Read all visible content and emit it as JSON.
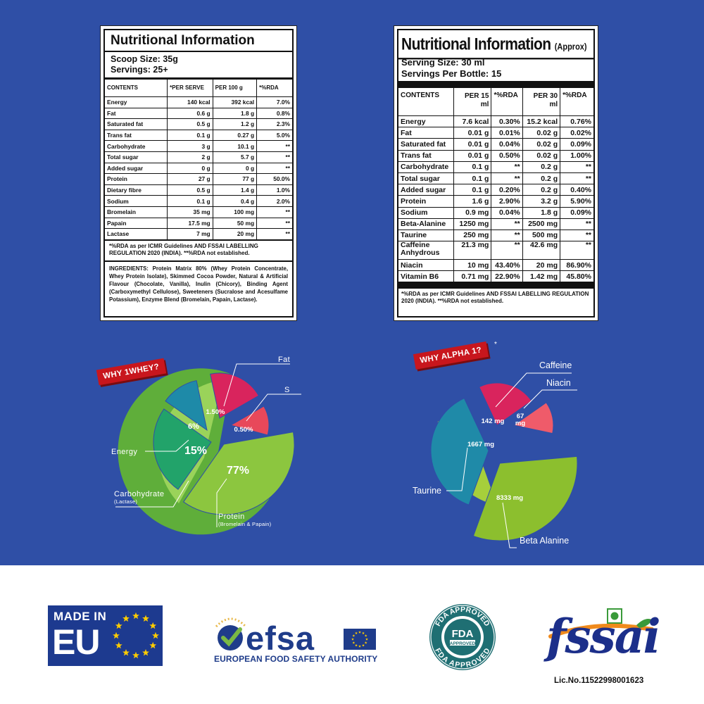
{
  "left_panel": {
    "title": "Nutritional Information",
    "scoop_size": "Scoop Size: 35g",
    "servings": "Servings: 25+",
    "headers": [
      "CONTENTS",
      "*PER SERVE",
      "PER 100 g",
      "*%RDA"
    ],
    "rows": [
      [
        "Energy",
        "140 kcal",
        "392 kcal",
        "7.0%"
      ],
      [
        "Fat",
        "0.6 g",
        "1.8 g",
        "0.8%"
      ],
      [
        "Saturated fat",
        "0.5 g",
        "1.2 g",
        "2.3%"
      ],
      [
        "Trans fat",
        "0.1 g",
        "0.27 g",
        "5.0%"
      ],
      [
        "Carbohydrate",
        "3 g",
        "10.1 g",
        "**"
      ],
      [
        "Total sugar",
        "2 g",
        "5.7 g",
        "**"
      ],
      [
        "Added sugar",
        "0 g",
        "0 g",
        "**"
      ],
      [
        "Protein",
        "27 g",
        "77 g",
        "50.0%"
      ],
      [
        "Dietary fibre",
        "0.5 g",
        "1.4 g",
        "1.0%"
      ],
      [
        "Sodium",
        "0.1 g",
        "0.4 g",
        "2.0%"
      ],
      [
        "Bromelain",
        "35 mg",
        "100 mg",
        "**"
      ],
      [
        "Papain",
        "17.5 mg",
        "50 mg",
        "**"
      ],
      [
        "Lactase",
        "7 mg",
        "20 mg",
        "**"
      ]
    ],
    "footnote": "*%RDA as per ICMR Guidelines AND FSSAI LABELLING REGULATION 2020 (INDIA). **%RDA not established.",
    "ingredients": "INGREDIENTS: Protein Matrix 80% (Whey Protein Concentrate, Whey Protein Isolate), Skimmed Cocoa Powder, Natural & Artificial Flavour (Chocolate, Vanilla), Inulin (Chicory), Binding Agent (Carboxymethyl Cellulose), Sweeteners (Sucralose and Acesulfame Potassium), Enzyme Blend (Bromelain, Papain, Lactase)."
  },
  "right_panel": {
    "title": "Nutritional Information",
    "title_suffix": "(Approx)",
    "serving_size": "Serving Size: 30 ml",
    "servings": "Servings Per Bottle: 15",
    "headers": [
      "CONTENTS",
      "PER 15 ml",
      "*%RDA",
      "PER 30 ml",
      "*%RDA"
    ],
    "rows": [
      [
        "Energy",
        "7.6 kcal",
        "0.30%",
        "15.2 kcal",
        "0.76%"
      ],
      [
        "Fat",
        "0.01 g",
        "0.01%",
        "0.02 g",
        "0.02%"
      ],
      [
        "Saturated fat",
        "0.01 g",
        "0.04%",
        "0.02 g",
        "0.09%"
      ],
      [
        "Trans fat",
        "0.01 g",
        "0.50%",
        "0.02 g",
        "1.00%"
      ],
      [
        "Carbohydrate",
        "0.1 g",
        "**",
        "0.2 g",
        "**"
      ],
      [
        "Total sugar",
        "0.1 g",
        "**",
        "0.2 g",
        "**"
      ],
      [
        "Added sugar",
        "0.1 g",
        "0.20%",
        "0.2 g",
        "0.40%"
      ],
      [
        "Protein",
        "1.6 g",
        "2.90%",
        "3.2 g",
        "5.90%"
      ],
      [
        "Sodium",
        "0.9 mg",
        "0.04%",
        "1.8 g",
        "0.09%"
      ],
      [
        "Beta-Alanine",
        "1250 mg",
        "**",
        "2500 mg",
        "**"
      ],
      [
        "Taurine",
        "250 mg",
        "**",
        "500 mg",
        "**"
      ],
      [
        "Caffeine Anhydrous",
        "21.3 mg",
        "**",
        "42.6 mg",
        "**"
      ],
      [
        "Niacin",
        "10 mg",
        "43.40%",
        "20 mg",
        "86.90%"
      ],
      [
        "Vitamin B6",
        "0.71 mg",
        "22.90%",
        "1.42 mg",
        "45.80%"
      ]
    ],
    "footnote": "*%RDA as per ICMR Guidelines AND FSSAI LABELLING REGULATION 2020 (INDIA). **%RDA not established."
  },
  "chart_data": [
    {
      "type": "pie",
      "title": "WHY 1WHEY?",
      "slices": [
        {
          "label": "Protein",
          "sublabel": "(Bromelain & Papain)",
          "value_text": "77%",
          "value": 77,
          "color": "#8cc63f"
        },
        {
          "label": "Carbohydrate",
          "sublabel": "(Lactase)",
          "value_text": "15%",
          "value": 15,
          "color": "#22a36a"
        },
        {
          "label": "Energy",
          "sublabel": "",
          "value_text": "6%",
          "value": 6,
          "color": "#1e8aa8"
        },
        {
          "label": "Fat",
          "sublabel": "",
          "value_text": "1.50%",
          "value": 1.5,
          "color": "#d9245d"
        },
        {
          "label": "S",
          "sublabel": "",
          "value_text": "0.50%",
          "value": 0.5,
          "color": "#e8485a"
        }
      ]
    },
    {
      "type": "pie",
      "title": "WHY ALPHA 1?",
      "title_mark": "*",
      "slices": [
        {
          "label": "Beta Alanine",
          "value_text": "8333 mg",
          "value": 8333,
          "color": "#8cbf2e"
        },
        {
          "label": "Taurine",
          "value_text": "1667 mg",
          "value": 1667,
          "color": "#1f8aa8"
        },
        {
          "label": "Caffeine",
          "value_text": "142 mg",
          "value": 142,
          "color": "#d9245d"
        },
        {
          "label": "Niacin",
          "value_text": "67 mg",
          "value": 67,
          "color": "#ef5b6a"
        }
      ]
    }
  ],
  "logos": {
    "eu_line1": "MADE IN",
    "eu_line2": "EU",
    "efsa_word": "efsa",
    "efsa_sub": "EUROPEAN FOOD SAFETY AUTHORITY",
    "fda_top": "FDA APPROVED",
    "fda_mid": "FDA",
    "fda_bottom": "FDA APPROVED",
    "fda_tag": "APPROVED",
    "fssai_word": "fssai",
    "fssai_lic": "Lic.No.11522998001623"
  },
  "colors": {
    "background": "#2f4fa6",
    "badge": "#c8161d",
    "eu_blue": "#1d3a8f",
    "eu_star": "#ffcc00",
    "efsa_blue": "#1f3c8a",
    "efsa_green": "#7ab845",
    "fda_teal": "#1f6f73",
    "fssai_blue": "#1c2f8a",
    "fssai_orange": "#f08a1c",
    "fssai_green": "#3a9a3a"
  }
}
